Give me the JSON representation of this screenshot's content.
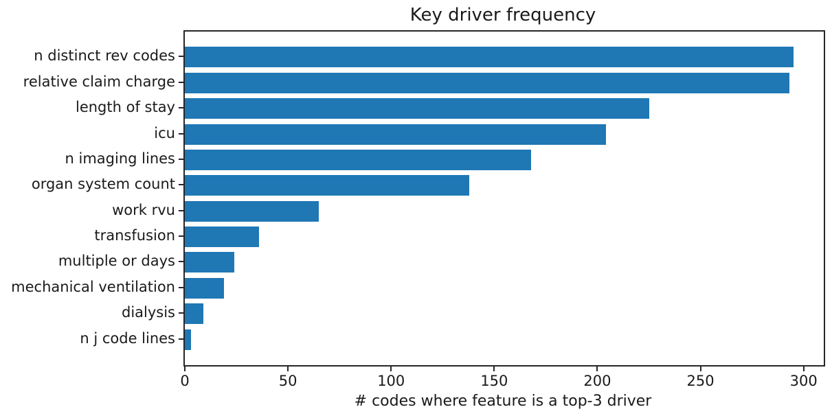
{
  "chart_data": {
    "type": "bar",
    "orientation": "horizontal",
    "title": "Key driver frequency",
    "xlabel": "# codes where feature is a top-3 driver",
    "ylabel": "",
    "categories": [
      "n distinct rev codes",
      "relative claim charge",
      "length of stay",
      "icu",
      "n imaging lines",
      "organ system count",
      "work rvu",
      "transfusion",
      "multiple or days",
      "mechanical ventilation",
      "dialysis",
      "n j code lines"
    ],
    "values": [
      295,
      293,
      225,
      204,
      168,
      138,
      65,
      36,
      24,
      19,
      9,
      3
    ],
    "xticks": [
      0,
      50,
      100,
      150,
      200,
      250,
      300
    ],
    "xlim": [
      0,
      309.75
    ],
    "bar_color": "#1f77b4",
    "grid": false,
    "legend": null
  }
}
